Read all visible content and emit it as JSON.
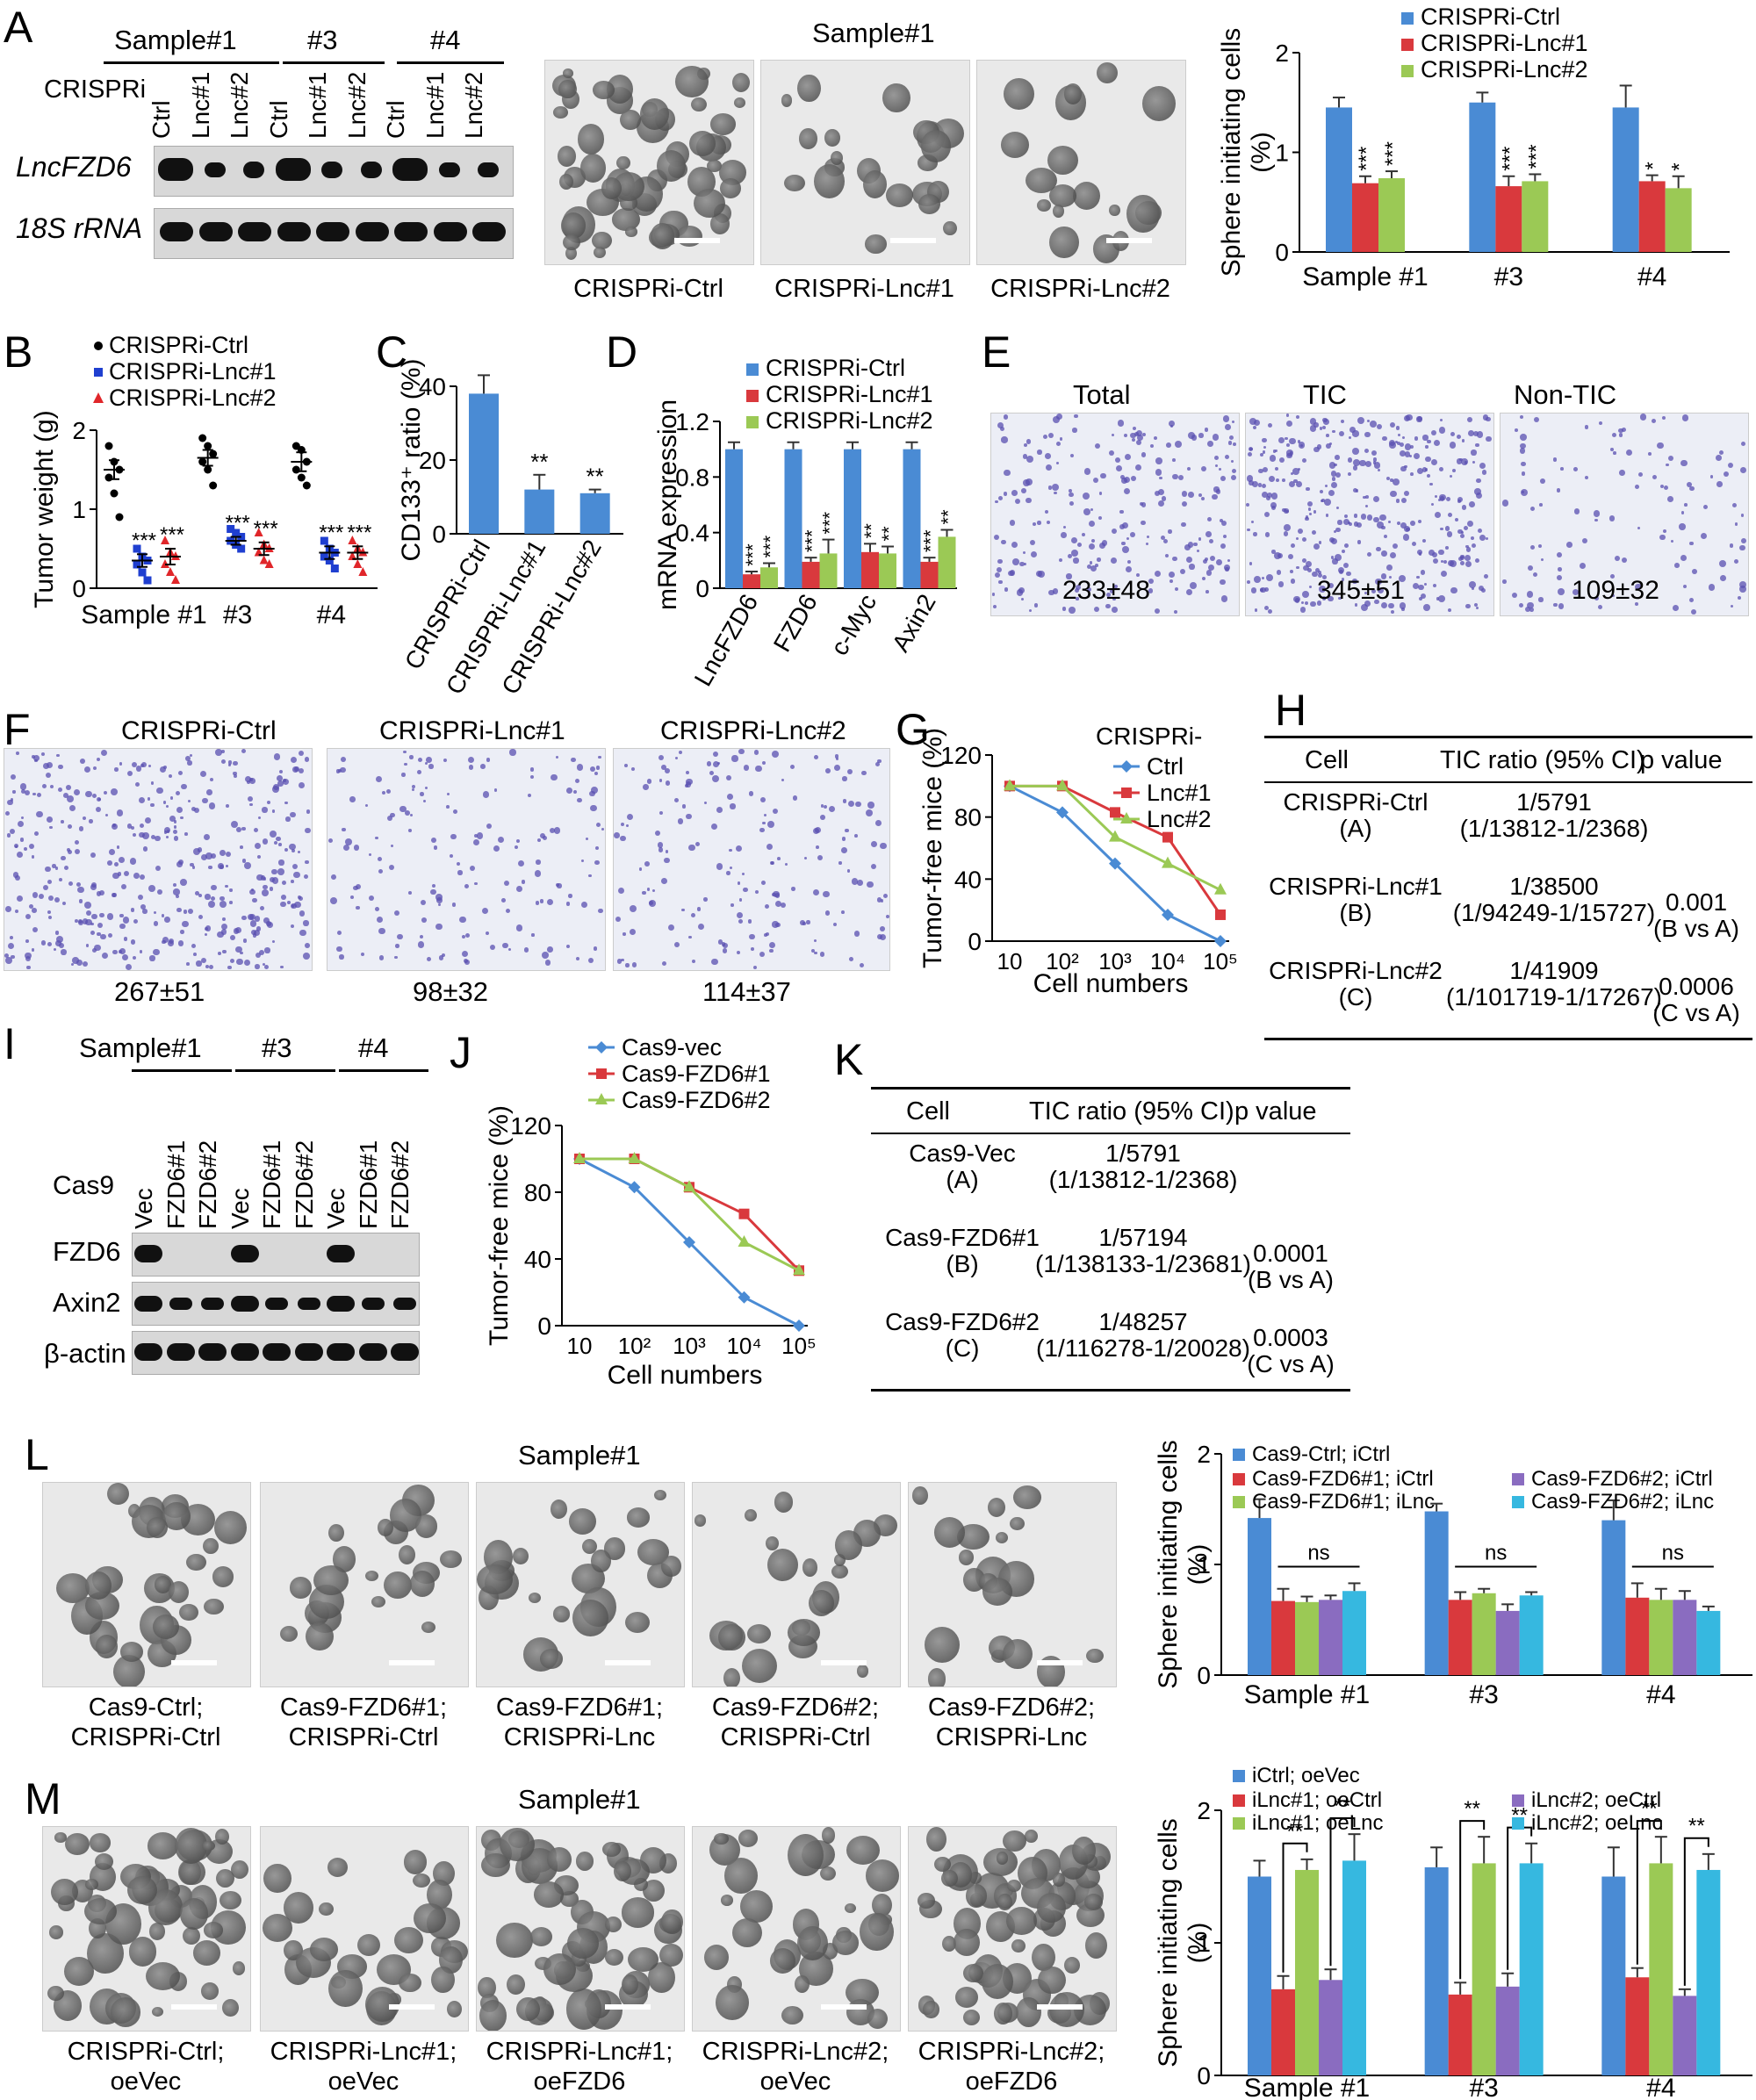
{
  "panels": {
    "A": {
      "label": "A",
      "blot": {
        "sample_headers": [
          "Sample#1",
          "#3",
          "#4"
        ],
        "row_label_crispri": "CRISPRi",
        "lanes": [
          "Ctrl",
          "Lnc#1",
          "Lnc#2",
          "Ctrl",
          "Lnc#1",
          "Lnc#2",
          "Ctrl",
          "Lnc#1",
          "Lnc#2"
        ],
        "rows": [
          "LncFZD6",
          "18S rRNA"
        ]
      },
      "images": {
        "title": "Sample#1",
        "captions": [
          "CRISPRi-Ctrl",
          "CRISPRi-Lnc#1",
          "CRISPRi-Lnc#2"
        ]
      }
    },
    "B": {
      "label": "B"
    },
    "C": {
      "label": "C"
    },
    "D": {
      "label": "D"
    },
    "E": {
      "label": "E",
      "titles": [
        "Total",
        "TIC",
        "Non-TIC"
      ],
      "counts": [
        "233±48",
        "345±51",
        "109±32"
      ]
    },
    "F": {
      "label": "F",
      "titles": [
        "CRISPRi-Ctrl",
        "CRISPRi-Lnc#1",
        "CRISPRi-Lnc#2"
      ],
      "counts": [
        "267±51",
        "98±32",
        "114±37"
      ]
    },
    "G": {
      "label": "G"
    },
    "H": {
      "label": "H",
      "headers": [
        "Cell",
        "TIC ratio (95% CI)",
        "p value"
      ],
      "rows": [
        {
          "cell": "CRISPRi-Ctrl",
          "group": "(A)",
          "ratio": "1/5791",
          "ci": "(1/13812-1/2368)",
          "p": "",
          "cmp": ""
        },
        {
          "cell": "CRISPRi-Lnc#1",
          "group": "(B)",
          "ratio": "1/38500",
          "ci": "(1/94249-1/15727)",
          "p": "0.001",
          "cmp": "(B vs A)"
        },
        {
          "cell": "CRISPRi-Lnc#2",
          "group": "(C)",
          "ratio": "1/41909",
          "ci": "(1/101719-1/17267)",
          "p": "0.0006",
          "cmp": "(C vs A)"
        }
      ]
    },
    "I": {
      "label": "I",
      "sample_headers": [
        "Sample#1",
        "#3",
        "#4"
      ],
      "row_label_cas9": "Cas9",
      "lanes": [
        "Vec",
        "FZD6#1",
        "FZD6#2",
        "Vec",
        "FZD6#1",
        "FZD6#2",
        "Vec",
        "FZD6#1",
        "FZD6#2"
      ],
      "rows": [
        "FZD6",
        "Axin2",
        "β-actin"
      ]
    },
    "J": {
      "label": "J"
    },
    "K": {
      "label": "K",
      "headers": [
        "Cell",
        "TIC ratio (95% CI)",
        "p value"
      ],
      "rows": [
        {
          "cell": "Cas9-Vec",
          "group": "(A)",
          "ratio": "1/5791",
          "ci": "(1/13812-1/2368)",
          "p": "",
          "cmp": ""
        },
        {
          "cell": "Cas9-FZD6#1",
          "group": "(B)",
          "ratio": "1/57194",
          "ci": "(1/138133-1/23681)",
          "p": "0.0001",
          "cmp": "(B vs A)"
        },
        {
          "cell": "Cas9-FZD6#2",
          "group": "(C)",
          "ratio": "1/48257",
          "ci": "(1/116278-1/20028)",
          "p": "0.0003",
          "cmp": "(C vs A)"
        }
      ]
    },
    "L": {
      "label": "L",
      "title": "Sample#1",
      "captions": [
        [
          "Cas9-Ctrl;",
          "CRISPRi-Ctrl"
        ],
        [
          "Cas9-FZD6#1;",
          "CRISPRi-Ctrl"
        ],
        [
          "Cas9-FZD6#1;",
          "CRISPRi-Lnc"
        ],
        [
          "Cas9-FZD6#2;",
          "CRISPRi-Ctrl"
        ],
        [
          "Cas9-FZD6#2;",
          "CRISPRi-Lnc"
        ]
      ]
    },
    "M": {
      "label": "M",
      "title": "Sample#1",
      "captions": [
        [
          "CRISPRi-Ctrl;",
          "oeVec"
        ],
        [
          "CRISPRi-Lnc#1;",
          "oeVec"
        ],
        [
          "CRISPRi-Lnc#1;",
          "oeFZD6"
        ],
        [
          "CRISPRi-Lnc#2;",
          "oeVec"
        ],
        [
          "CRISPRi-Lnc#2;",
          "oeFZD6"
        ]
      ]
    }
  },
  "colors": {
    "blue": "#4a8bd4",
    "red": "#d9393d",
    "green": "#9bc955",
    "purple": "#8a6cc0",
    "cyan": "#36b8e0"
  },
  "chart_data": [
    {
      "id": "A-chart",
      "type": "bar",
      "ylabel": "Sphere initiating cells (%)",
      "ylim": [
        0,
        2
      ],
      "yticks": [
        "0",
        "1",
        "2"
      ],
      "categories": [
        "Sample #1",
        "#3",
        "#4"
      ],
      "series": [
        {
          "name": "CRISPRi-Ctrl",
          "color": "#4a8bd4",
          "values": [
            1.45,
            1.5,
            1.45
          ],
          "err": [
            0.1,
            0.1,
            0.22
          ],
          "stars": [
            "",
            "",
            ""
          ]
        },
        {
          "name": "CRISPRi-Lnc#1",
          "color": "#d9393d",
          "values": [
            0.69,
            0.66,
            0.71
          ],
          "err": [
            0.07,
            0.1,
            0.06
          ],
          "stars": [
            "***",
            "***",
            "*"
          ]
        },
        {
          "name": "CRISPRi-Lnc#2",
          "color": "#9bc955",
          "values": [
            0.74,
            0.71,
            0.64
          ],
          "err": [
            0.07,
            0.07,
            0.12
          ],
          "stars": [
            "***",
            "***",
            "*"
          ]
        }
      ]
    },
    {
      "id": "B-chart",
      "type": "scatter",
      "ylabel": "Tumor weight (g)",
      "ylim": [
        0,
        2
      ],
      "yticks": [
        "0",
        "1",
        "2"
      ],
      "categories": [
        "Sample #1",
        "#3",
        "#4"
      ],
      "series": [
        {
          "name": "CRISPRi-Ctrl",
          "color": "#000000",
          "marker": "circle",
          "mean": [
            1.5,
            1.65,
            1.6
          ],
          "sem": [
            0.12,
            0.1,
            0.12
          ],
          "points": [
            [
              1.8,
              1.6,
              1.5,
              1.4,
              1.2,
              0.9
            ],
            [
              1.9,
              1.8,
              1.7,
              1.6,
              1.5,
              1.3
            ],
            [
              1.8,
              1.75,
              1.6,
              1.5,
              1.4,
              1.3
            ]
          ],
          "stars": [
            "",
            "",
            ""
          ]
        },
        {
          "name": "CRISPRi-Lnc#1",
          "color": "#1f3fd0",
          "marker": "square",
          "mean": [
            0.35,
            0.6,
            0.45
          ],
          "sem": [
            0.08,
            0.05,
            0.08
          ],
          "points": [
            [
              0.5,
              0.4,
              0.35,
              0.3,
              0.2,
              0.1
            ],
            [
              0.75,
              0.7,
              0.65,
              0.6,
              0.55,
              0.5
            ],
            [
              0.6,
              0.5,
              0.45,
              0.4,
              0.35,
              0.25
            ]
          ],
          "stars": [
            "***",
            "***",
            "***"
          ]
        },
        {
          "name": "CRISPRi-Lnc#2",
          "color": "#e0262a",
          "marker": "triangle",
          "mean": [
            0.4,
            0.5,
            0.45
          ],
          "sem": [
            0.1,
            0.08,
            0.08
          ],
          "points": [
            [
              0.6,
              0.45,
              0.4,
              0.3,
              0.2,
              0.1
            ],
            [
              0.7,
              0.55,
              0.5,
              0.45,
              0.35,
              0.3
            ],
            [
              0.6,
              0.5,
              0.45,
              0.4,
              0.3,
              0.2
            ]
          ],
          "stars": [
            "***",
            "***",
            "***"
          ]
        }
      ]
    },
    {
      "id": "C-chart",
      "type": "bar",
      "ylabel": "CD133⁺ ratio (%)",
      "ylim": [
        0,
        40
      ],
      "yticks": [
        "0",
        "20",
        "40"
      ],
      "categories": [
        "CRISPRi-Ctrl",
        "CRISPRi-Lnc#1",
        "CRISPRi-Lnc#2"
      ],
      "series": [
        {
          "name": "",
          "color": "#4a8bd4",
          "values": [
            38,
            12,
            11
          ],
          "err": [
            5,
            4,
            1
          ],
          "stars": [
            "",
            "**",
            "**"
          ]
        }
      ]
    },
    {
      "id": "D-chart",
      "type": "bar",
      "ylabel": "mRNA expression",
      "ylim": [
        0,
        1.2
      ],
      "yticks": [
        "0",
        "0.4",
        "0.8",
        "1.2"
      ],
      "categories": [
        "LncFZD6",
        "FZD6",
        "c-Myc",
        "Axin2"
      ],
      "series": [
        {
          "name": "CRISPRi-Ctrl",
          "color": "#4a8bd4",
          "values": [
            1,
            1,
            1,
            1
          ],
          "err": [
            0.05,
            0.05,
            0.05,
            0.05
          ],
          "stars": [
            "",
            "",
            "",
            ""
          ]
        },
        {
          "name": "CRISPRi-Lnc#1",
          "color": "#d9393d",
          "values": [
            0.1,
            0.19,
            0.26,
            0.19
          ],
          "err": [
            0.02,
            0.03,
            0.06,
            0.03
          ],
          "stars": [
            "***",
            "***",
            "**",
            "***"
          ]
        },
        {
          "name": "CRISPRi-Lnc#2",
          "color": "#9bc955",
          "values": [
            0.15,
            0.25,
            0.25,
            0.37
          ],
          "err": [
            0.03,
            0.1,
            0.05,
            0.05
          ],
          "stars": [
            "***",
            "***",
            "**",
            "**"
          ]
        }
      ]
    },
    {
      "id": "G-chart",
      "type": "line",
      "ylabel": "Tumor-free mice (%)",
      "xlabel": "Cell numbers",
      "ylim": [
        0,
        120
      ],
      "yticks": [
        "0",
        "40",
        "80",
        "120"
      ],
      "x": [
        "10",
        "10²",
        "10³",
        "10⁴",
        "10⁵"
      ],
      "legend_title": "CRISPRi-",
      "series": [
        {
          "name": "Ctrl",
          "color": "#4a8bd4",
          "marker": "diamond",
          "values": [
            100,
            83,
            50,
            17,
            0
          ]
        },
        {
          "name": "Lnc#1",
          "color": "#d9393d",
          "marker": "square",
          "values": [
            100,
            100,
            83,
            67,
            17
          ]
        },
        {
          "name": "Lnc#2",
          "color": "#9bc955",
          "marker": "triangle",
          "values": [
            100,
            100,
            67,
            50,
            33
          ]
        }
      ]
    },
    {
      "id": "J-chart",
      "type": "line",
      "ylabel": "Tumor-free mice (%)",
      "xlabel": "Cell numbers",
      "ylim": [
        0,
        120
      ],
      "yticks": [
        "0",
        "40",
        "80",
        "120"
      ],
      "x": [
        "10",
        "10²",
        "10³",
        "10⁴",
        "10⁵"
      ],
      "legend_title": "",
      "series": [
        {
          "name": "Cas9-vec",
          "color": "#4a8bd4",
          "marker": "diamond",
          "values": [
            100,
            83,
            50,
            17,
            0
          ]
        },
        {
          "name": "Cas9-FZD6#1",
          "color": "#d9393d",
          "marker": "square",
          "values": [
            100,
            100,
            83,
            67,
            33
          ]
        },
        {
          "name": "Cas9-FZD6#2",
          "color": "#9bc955",
          "marker": "triangle",
          "values": [
            100,
            100,
            83,
            50,
            33
          ]
        }
      ]
    },
    {
      "id": "L-chart",
      "type": "bar",
      "ylabel": "Sphere initiating cells (%)",
      "ylim": [
        0,
        2
      ],
      "yticks": [
        "0",
        "1",
        "2"
      ],
      "categories": [
        "Sample #1",
        "#3",
        "#4"
      ],
      "sig": "ns",
      "series": [
        {
          "name": "Cas9-Ctrl; iCtrl",
          "color": "#4a8bd4",
          "values": [
            1.42,
            1.48,
            1.4
          ],
          "err": [
            0.17,
            0.07,
            0.18
          ]
        },
        {
          "name": "Cas9-FZD6#1; iCtrl",
          "color": "#d9393d",
          "values": [
            0.67,
            0.68,
            0.7
          ],
          "err": [
            0.11,
            0.07,
            0.13
          ]
        },
        {
          "name": "Cas9-FZD6#1; iLnc",
          "color": "#9bc955",
          "values": [
            0.66,
            0.74,
            0.68
          ],
          "err": [
            0.05,
            0.04,
            0.1
          ]
        },
        {
          "name": "Cas9-FZD6#2; iCtrl",
          "color": "#8a6cc0",
          "values": [
            0.68,
            0.58,
            0.68
          ],
          "err": [
            0.04,
            0.06,
            0.08
          ]
        },
        {
          "name": "Cas9-FZD6#2; iLnc",
          "color": "#36b8e0",
          "values": [
            0.76,
            0.72,
            0.58
          ],
          "err": [
            0.07,
            0.03,
            0.04
          ]
        }
      ]
    },
    {
      "id": "M-chart",
      "type": "bar",
      "ylabel": "Sphere initiating cells (%)",
      "ylim": [
        0,
        2
      ],
      "yticks": [
        "0",
        "1",
        "2"
      ],
      "categories": [
        "Sample #1",
        "#3",
        "#4"
      ],
      "sig": "**",
      "series": [
        {
          "name": "iCtrl; oeVec",
          "color": "#4a8bd4",
          "values": [
            1.5,
            1.57,
            1.5
          ],
          "err": [
            0.12,
            0.15,
            0.22
          ]
        },
        {
          "name": "iLnc#1; oeCtrl",
          "color": "#d9393d",
          "values": [
            0.65,
            0.61,
            0.74
          ],
          "err": [
            0.1,
            0.09,
            0.07
          ]
        },
        {
          "name": "iLnc#1; oeLnc",
          "color": "#9bc955",
          "values": [
            1.55,
            1.6,
            1.6
          ],
          "err": [
            0.08,
            0.2,
            0.2
          ]
        },
        {
          "name": "iLnc#2; oeCtrl",
          "color": "#8a6cc0",
          "values": [
            0.72,
            0.67,
            0.6
          ],
          "err": [
            0.08,
            0.1,
            0.05
          ]
        },
        {
          "name": "iLnc#2; oeLnc",
          "color": "#36b8e0",
          "values": [
            1.62,
            1.6,
            1.55
          ],
          "err": [
            0.2,
            0.15,
            0.12
          ]
        }
      ]
    }
  ]
}
